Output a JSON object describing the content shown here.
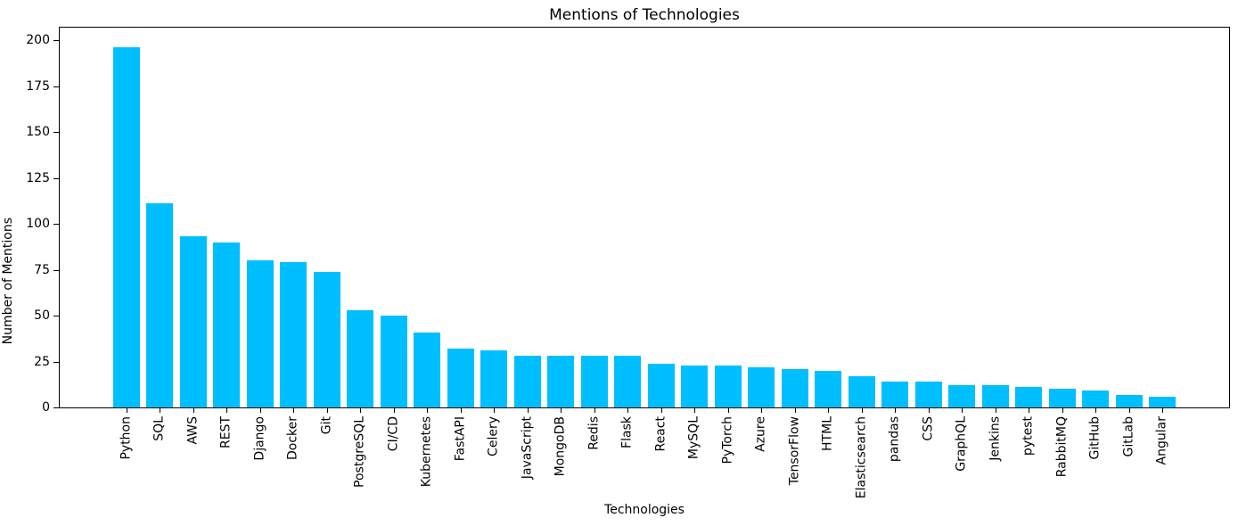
{
  "chart_data": {
    "type": "bar",
    "title": "Mentions of Technologies",
    "xlabel": "Technologies",
    "ylabel": "Number of Mentions",
    "categories": [
      "Python",
      "SQL",
      "AWS",
      "REST",
      "Django",
      "Docker",
      "Git",
      "PostgreSQL",
      "CI/CD",
      "Kubernetes",
      "FastAPI",
      "Celery",
      "JavaScript",
      "MongoDB",
      "Redis",
      "Flask",
      "React",
      "MySQL",
      "PyTorch",
      "Azure",
      "TensorFlow",
      "HTML",
      "Elasticsearch",
      "pandas",
      "CSS",
      "GraphQL",
      "Jenkins",
      "pytest",
      "RabbitMQ",
      "GitHub",
      "GitLab",
      "Angular"
    ],
    "values": [
      196,
      111,
      93,
      90,
      80,
      79,
      74,
      53,
      50,
      41,
      32,
      31,
      28,
      28,
      28,
      28,
      24,
      23,
      23,
      22,
      21,
      20,
      17,
      14,
      14,
      12,
      12,
      11,
      10,
      9,
      7,
      6
    ],
    "yticks": [
      0,
      25,
      50,
      75,
      100,
      125,
      150,
      175,
      200
    ],
    "ylim": [
      0,
      206.8
    ],
    "bar_color": "#00bfff",
    "background_color": "#ffffff",
    "grid": false,
    "legend": "none"
  }
}
